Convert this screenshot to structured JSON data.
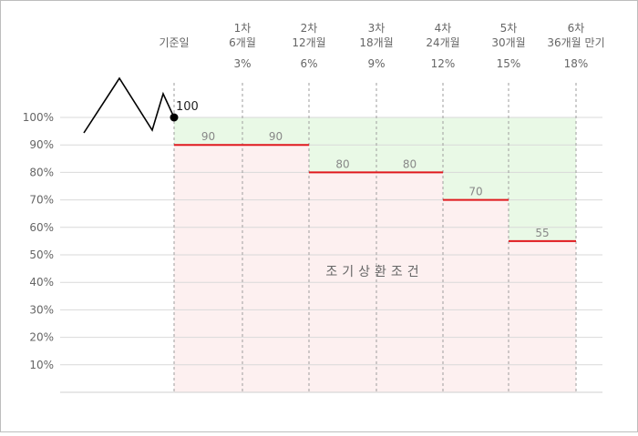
{
  "chart_data": {
    "type": "step-line",
    "y_axis": {
      "min": 0,
      "max": 100,
      "ticks": [
        "10%",
        "20%",
        "30%",
        "40%",
        "50%",
        "60%",
        "70%",
        "80%",
        "90%",
        "100%"
      ]
    },
    "columns": [
      {
        "line1": "기준일",
        "line2": "",
        "rate": ""
      },
      {
        "line1": "1차",
        "line2": "6개월",
        "rate": "3%"
      },
      {
        "line1": "2차",
        "line2": "12개월",
        "rate": "6%"
      },
      {
        "line1": "3차",
        "line2": "18개월",
        "rate": "9%"
      },
      {
        "line1": "4차",
        "line2": "24개월",
        "rate": "12%"
      },
      {
        "line1": "5차",
        "line2": "30개월",
        "rate": "15%"
      },
      {
        "line1": "6차",
        "line2": "36개월 만기",
        "rate": "18%"
      }
    ],
    "base_value": 100,
    "base_label": "100",
    "barrier_levels": [
      90,
      90,
      80,
      80,
      70,
      55
    ],
    "barrier_labels": [
      "90",
      "90",
      "80",
      "80",
      "70",
      "55"
    ],
    "region_label": "조기상환조건",
    "colors": {
      "barrier_line": "#e0191e",
      "lower_fill": "#fdf0f0",
      "upper_fill": "#e9f9e6",
      "grid": "#d9d9d9",
      "text": "#666666"
    }
  }
}
